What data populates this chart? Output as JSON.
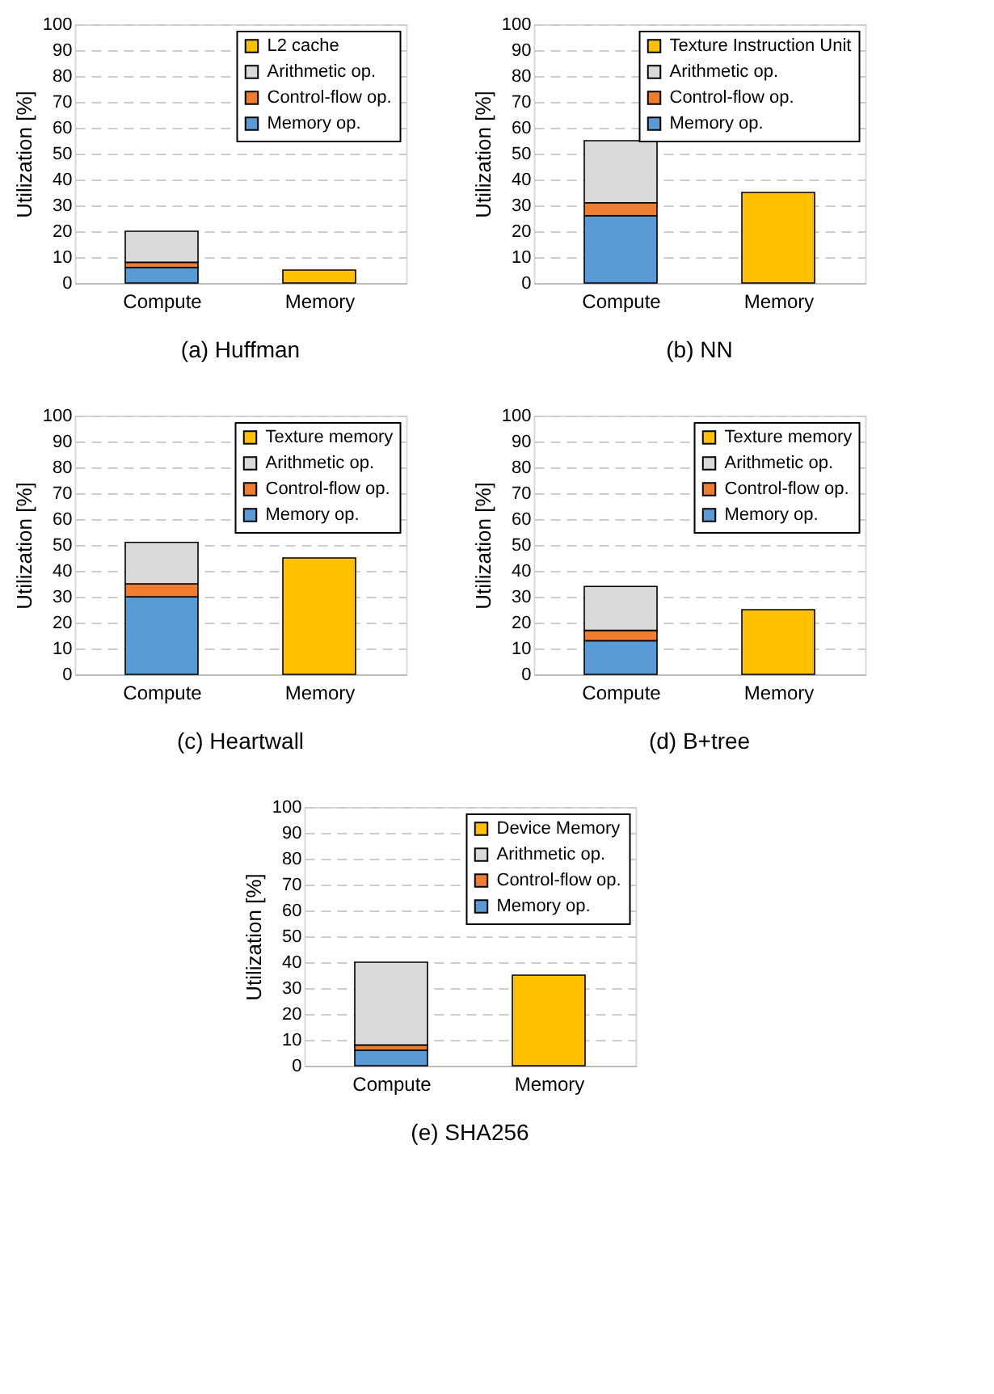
{
  "chart_data": [
    {
      "type": "bar",
      "stacked": true,
      "title": "(a) Huffman",
      "ylabel": "Utilization [%]",
      "categories": [
        "Compute",
        "Memory"
      ],
      "ylim": [
        0,
        100
      ],
      "yticks": [
        0,
        10,
        20,
        30,
        40,
        50,
        60,
        70,
        80,
        90,
        100
      ],
      "grid": "y",
      "legend": "top right",
      "series": [
        {
          "name": "Memory op.",
          "color": "#5b9bd5",
          "values": [
            6,
            null
          ]
        },
        {
          "name": "Control-flow op.",
          "color": "#ed7d31",
          "values": [
            2,
            null
          ]
        },
        {
          "name": "Arithmetic op.",
          "color": "#d9d9d9",
          "values": [
            12,
            null
          ]
        },
        {
          "name": "L2 cache",
          "color": "#ffc000",
          "values": [
            null,
            5
          ]
        }
      ]
    },
    {
      "type": "bar",
      "stacked": true,
      "title": "(b) NN",
      "ylabel": "Utilization [%]",
      "categories": [
        "Compute",
        "Memory"
      ],
      "ylim": [
        0,
        100
      ],
      "yticks": [
        0,
        10,
        20,
        30,
        40,
        50,
        60,
        70,
        80,
        90,
        100
      ],
      "grid": "y",
      "legend": "top right",
      "series": [
        {
          "name": "Memory op.",
          "color": "#5b9bd5",
          "values": [
            26,
            null
          ]
        },
        {
          "name": "Control-flow op.",
          "color": "#ed7d31",
          "values": [
            5,
            null
          ]
        },
        {
          "name": "Arithmetic op.",
          "color": "#d9d9d9",
          "values": [
            24,
            null
          ]
        },
        {
          "name": "Texture Instruction Unit",
          "color": "#ffc000",
          "values": [
            null,
            35
          ]
        }
      ]
    },
    {
      "type": "bar",
      "stacked": true,
      "title": "(c) Heartwall",
      "ylabel": "Utilization [%]",
      "categories": [
        "Compute",
        "Memory"
      ],
      "ylim": [
        0,
        100
      ],
      "yticks": [
        0,
        10,
        20,
        30,
        40,
        50,
        60,
        70,
        80,
        90,
        100
      ],
      "grid": "y",
      "legend": "top right",
      "series": [
        {
          "name": "Memory op.",
          "color": "#5b9bd5",
          "values": [
            30,
            null
          ]
        },
        {
          "name": "Control-flow op.",
          "color": "#ed7d31",
          "values": [
            5,
            null
          ]
        },
        {
          "name": "Arithmetic op.",
          "color": "#d9d9d9",
          "values": [
            16,
            null
          ]
        },
        {
          "name": "Texture memory",
          "color": "#ffc000",
          "values": [
            null,
            45
          ]
        }
      ]
    },
    {
      "type": "bar",
      "stacked": true,
      "title": "(d) B+tree",
      "ylabel": "Utilization [%]",
      "categories": [
        "Compute",
        "Memory"
      ],
      "ylim": [
        0,
        100
      ],
      "yticks": [
        0,
        10,
        20,
        30,
        40,
        50,
        60,
        70,
        80,
        90,
        100
      ],
      "grid": "y",
      "legend": "top right",
      "series": [
        {
          "name": "Memory op.",
          "color": "#5b9bd5",
          "values": [
            13,
            null
          ]
        },
        {
          "name": "Control-flow op.",
          "color": "#ed7d31",
          "values": [
            4,
            null
          ]
        },
        {
          "name": "Arithmetic op.",
          "color": "#d9d9d9",
          "values": [
            17,
            null
          ]
        },
        {
          "name": "Texture memory",
          "color": "#ffc000",
          "values": [
            null,
            25
          ]
        }
      ]
    },
    {
      "type": "bar",
      "stacked": true,
      "title": "(e) SHA256",
      "ylabel": "Utilization [%]",
      "categories": [
        "Compute",
        "Memory"
      ],
      "ylim": [
        0,
        100
      ],
      "yticks": [
        0,
        10,
        20,
        30,
        40,
        50,
        60,
        70,
        80,
        90,
        100
      ],
      "grid": "y",
      "legend": "top right",
      "series": [
        {
          "name": "Memory op.",
          "color": "#5b9bd5",
          "values": [
            6,
            null
          ]
        },
        {
          "name": "Control-flow op.",
          "color": "#ed7d31",
          "values": [
            2,
            null
          ]
        },
        {
          "name": "Arithmetic op.",
          "color": "#d9d9d9",
          "values": [
            32,
            null
          ]
        },
        {
          "name": "Device Memory",
          "color": "#ffc000",
          "values": [
            null,
            35
          ]
        }
      ]
    }
  ]
}
